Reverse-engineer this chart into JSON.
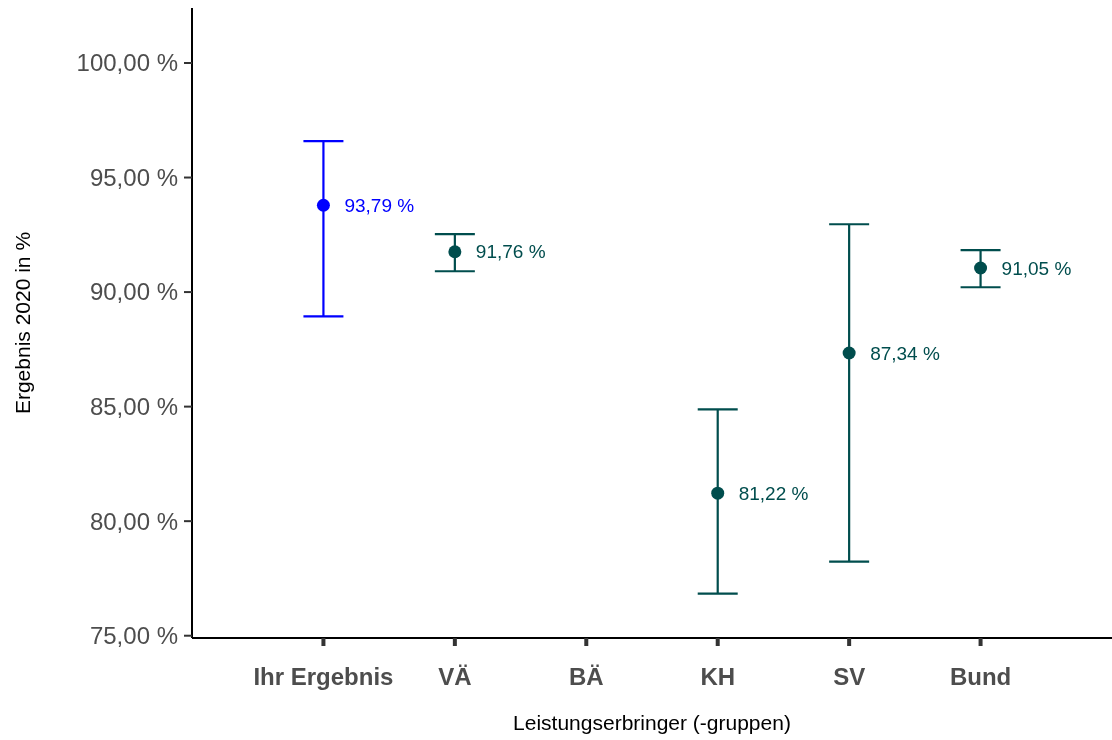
{
  "chart_data": {
    "type": "scatter",
    "xlabel": "Leistungserbringer (-gruppen)",
    "ylabel": "Ergebnis 2020 in %",
    "categories": [
      "Ihr Ergebnis",
      "VÄ",
      "BÄ",
      "KH",
      "SV",
      "Bund"
    ],
    "values": [
      93.79,
      91.76,
      null,
      81.22,
      87.34,
      91.05
    ],
    "errors": [
      [
        88.94,
        96.59
      ],
      [
        90.91,
        92.53
      ],
      null,
      [
        76.84,
        84.88
      ],
      [
        78.23,
        92.96
      ],
      [
        90.21,
        91.83
      ]
    ],
    "colors": [
      "#0000ff",
      "#004d4d",
      null,
      "#004d4d",
      "#004d4d",
      "#004d4d"
    ],
    "value_labels": [
      "93,79 %",
      "91,76 %",
      null,
      "81,22 %",
      "87,34 %",
      "91,05 %"
    ],
    "ylim": [
      74.9,
      102.4
    ],
    "yticks": [
      {
        "value": 75,
        "label": "75,00 %"
      },
      {
        "value": 80,
        "label": "80,00 %"
      },
      {
        "value": 85,
        "label": "85,00 %"
      },
      {
        "value": 90,
        "label": "90,00 %"
      },
      {
        "value": 95,
        "label": "95,00 %"
      },
      {
        "value": 100,
        "label": "100,00 %"
      }
    ],
    "marker": "circle",
    "grid": false
  }
}
